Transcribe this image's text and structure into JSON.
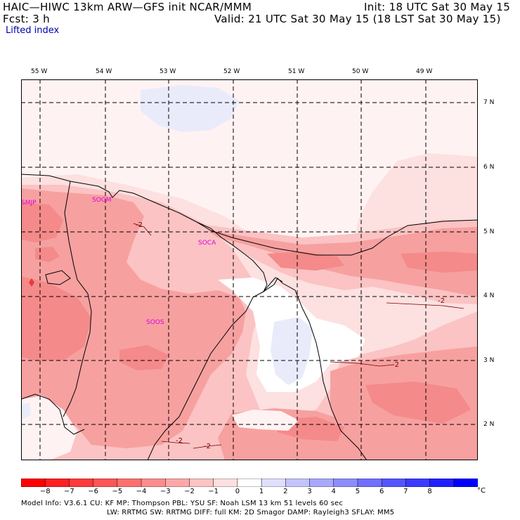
{
  "header": {
    "line1_left": "HAIC—HIWC 13km ARW—GFS init   NCAR/MMM",
    "line2_left": "Fcst:    3 h",
    "line1_right": "Init: 18 UTC Sat 30 May 15",
    "line2_right": "Valid: 21 UTC Sat 30 May 15 (18 LST Sat 30 May 15)",
    "field_name": "Lifted index"
  },
  "map": {
    "longitude_labels": [
      "55 W",
      "54 W",
      "53 W",
      "52 W",
      "51 W",
      "50 W",
      "49 W"
    ],
    "latitude_labels": [
      "7 N",
      "6 N",
      "5 N",
      "4 N",
      "3 N",
      "2 N"
    ],
    "stations": [
      "SMJP",
      "SOGM",
      "SOCA",
      "SOOS"
    ],
    "contour_labels": [
      "-2",
      "-2",
      "-2",
      "-2",
      "-2"
    ],
    "colors": {
      "lvl_m5_m4": "#f48a8a",
      "lvl_m4_m3": "#f7a0a0",
      "lvl_m3_m2": "#fbc3c3",
      "lvl_m2_m1": "#fde0e0",
      "lvl_m1_0": "#fff2f2",
      "lvl_0_1": "#ffffff",
      "lvl_1_2": "#e9ebfb",
      "lvl_m8_m7": "#e83a3a"
    }
  },
  "colorbar": {
    "labels": [
      "−8",
      "−7",
      "−6",
      "−5",
      "−4",
      "−3",
      "−2",
      "−1",
      "0",
      "1",
      "2",
      "3",
      "4",
      "5",
      "6",
      "7",
      "8"
    ],
    "unit": "°C",
    "colors": [
      "#ff0000",
      "#ff2020",
      "#ff3b3b",
      "#fe5555",
      "#fe7070",
      "#fe8c8c",
      "#fda8a8",
      "#fdc4c4",
      "#fee0e0",
      "#ffffff",
      "#e0e0fe",
      "#c4c4fd",
      "#a8a8fd",
      "#8c8cfe",
      "#7070fe",
      "#5555fe",
      "#3b3bff",
      "#2020ff",
      "#0000ff"
    ]
  },
  "footer": {
    "line1": "Model Info: V3.6.1     CU: KF         MP: Thompson      PBL: YSU        SF: Noah LSM       13 km    51 levels    60 sec",
    "line2": "LW: RRTMG    SW: RRTMG   DIFF: full    KM: 2D Smagor DAMP: Rayleigh3   SFLAY: MM5"
  }
}
